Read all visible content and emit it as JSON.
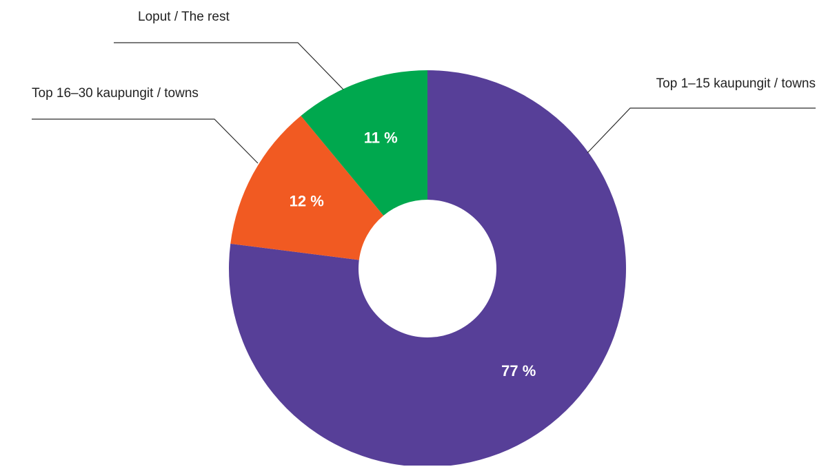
{
  "chart_data": {
    "type": "pie",
    "donut": true,
    "title": "",
    "categories": [
      "Top 1–15 kaupungit / towns",
      "Top 16–30 kaupungit / towns",
      "Loput / The rest"
    ],
    "values": [
      77,
      12,
      11
    ],
    "value_labels": [
      "77 %",
      "12 %",
      "11 %"
    ],
    "colors": [
      "#573F98",
      "#F15A22",
      "#00A84E"
    ],
    "legend": "none",
    "labels_placement": "callouts with leader lines"
  }
}
